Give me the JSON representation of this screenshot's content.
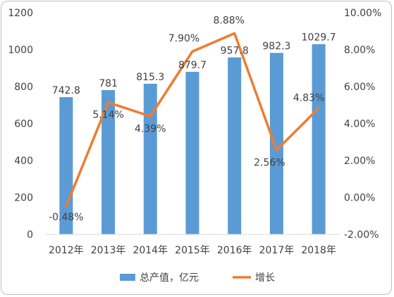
{
  "chart_data": {
    "type": "bar+line",
    "categories": [
      "2012年",
      "2013年",
      "2014年",
      "2015年",
      "2016年",
      "2017年",
      "2018年"
    ],
    "series": [
      {
        "name": "总产值，亿元",
        "type": "bar",
        "axis": "left",
        "color": "#5b9bd5",
        "values": [
          742.8,
          781,
          815.3,
          879.7,
          957.8,
          982.3,
          1029.7
        ],
        "labels": [
          "742.8",
          "781",
          "815.3",
          "879.7",
          "957.8",
          "982.3",
          "1029.7"
        ]
      },
      {
        "name": "增长",
        "type": "line",
        "axis": "right",
        "color": "#ed7d31",
        "values": [
          -0.48,
          5.14,
          4.39,
          7.9,
          8.88,
          2.56,
          4.83
        ],
        "labels": [
          "-0.48%",
          "5.14%",
          "4.39%",
          "7.90%",
          "8.88%",
          "2.56%",
          "4.83%"
        ]
      }
    ],
    "y_left": {
      "min": 0,
      "max": 1200,
      "ticks": [
        "0",
        "200",
        "400",
        "600",
        "800",
        "1000",
        "1200"
      ]
    },
    "y_right": {
      "min": -2,
      "max": 10,
      "ticks": [
        "-2.00%",
        "0.00%",
        "2.00%",
        "4.00%",
        "6.00%",
        "8.00%",
        "10.00%"
      ]
    },
    "grid": false,
    "legend": {
      "position": "bottom",
      "items": [
        "总产值，亿元",
        "增长"
      ]
    }
  }
}
